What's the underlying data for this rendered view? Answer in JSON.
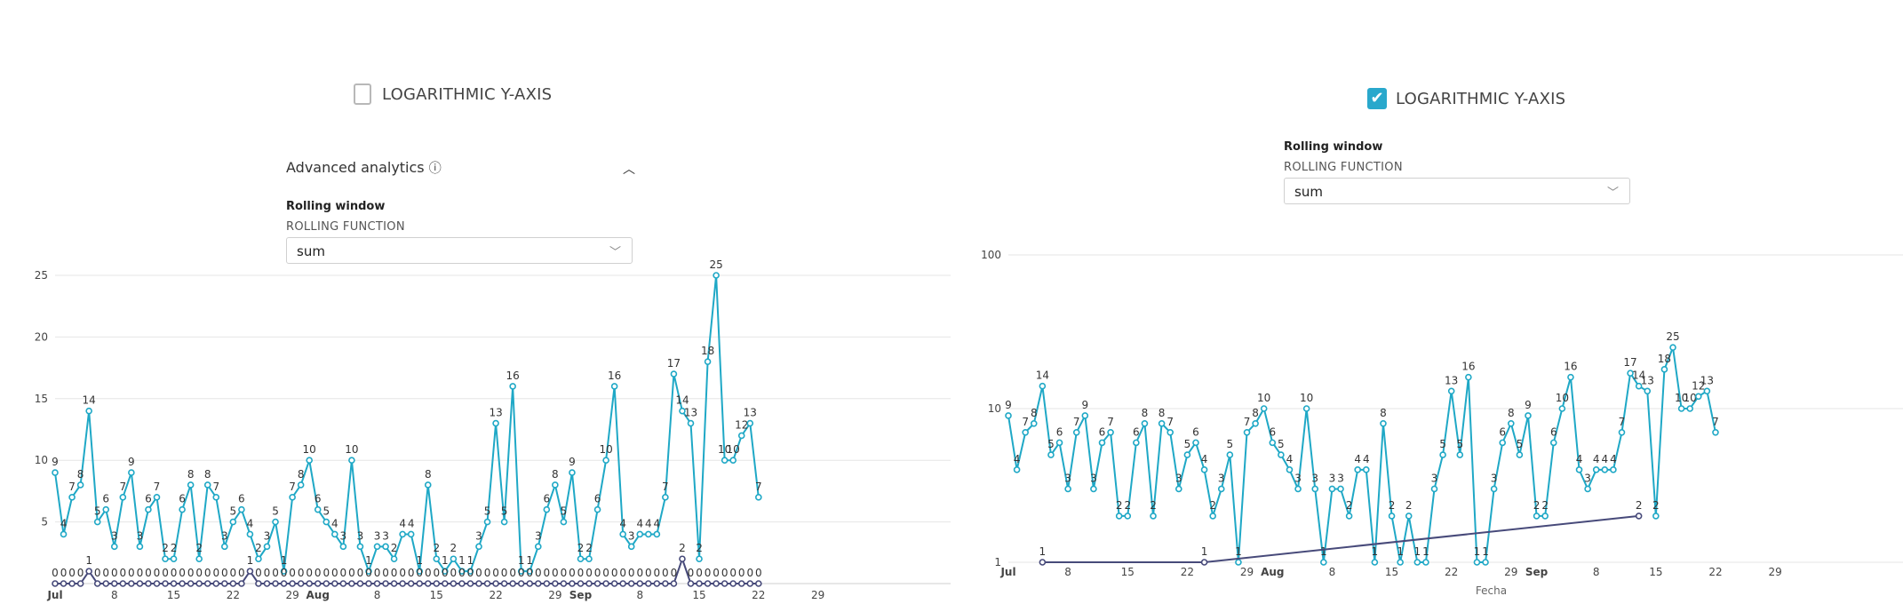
{
  "left_panel": {
    "log_axis_label": "LOGARITHMIC Y-AXIS",
    "log_axis_checked": false,
    "advanced_analytics_label": "Advanced analytics",
    "info_icon": "info-icon",
    "collapse_icon": "chevron-up-icon",
    "rolling_window_label": "Rolling window",
    "rolling_function_label": "ROLLING FUNCTION",
    "rolling_function_value": "sum"
  },
  "right_panel": {
    "log_axis_label": "LOGARITHMIC Y-AXIS",
    "log_axis_checked": true,
    "rolling_window_label": "Rolling window",
    "rolling_function_label": "ROLLING FUNCTION",
    "rolling_function_value": "sum"
  },
  "colors": {
    "series_main": "#1fa8c6",
    "series_secondary": "#474a7a",
    "checkbox_accent": "#29a8cc",
    "grid": "#e6e6e6"
  },
  "chart_data": [
    {
      "type": "line",
      "scale": "linear",
      "ylim": [
        0,
        25
      ],
      "yticks": [
        5,
        10,
        15,
        20,
        25
      ],
      "xlabel": "",
      "x_tick_labels": [
        "Jul",
        "8",
        "15",
        "22",
        "29",
        "Aug",
        "8",
        "15",
        "22",
        "29",
        "Sep",
        "8",
        "15",
        "22",
        "29"
      ],
      "grid": true,
      "series": [
        {
          "values": [
            9,
            4,
            7,
            8,
            14,
            5,
            6,
            3,
            7,
            9,
            3,
            6,
            7,
            2,
            2,
            6,
            8,
            2,
            8,
            7,
            3,
            5,
            6,
            4,
            2,
            3,
            5,
            1,
            7,
            8,
            10,
            6,
            5,
            4,
            3,
            10,
            3,
            1,
            3,
            3,
            2,
            4,
            4,
            1,
            8,
            2,
            1,
            2,
            1,
            1,
            3,
            5,
            13,
            5,
            16,
            1,
            1,
            3,
            6,
            8,
            5,
            9,
            2,
            2,
            6,
            10,
            16,
            4,
            3,
            4,
            4,
            4,
            7,
            17,
            14,
            13,
            2,
            18,
            25,
            10,
            10,
            12,
            13,
            7
          ]
        },
        {
          "values": [
            0,
            0,
            0,
            0,
            1,
            0,
            0,
            0,
            0,
            0,
            0,
            0,
            0,
            0,
            0,
            0,
            0,
            0,
            0,
            0,
            0,
            0,
            0,
            1,
            0,
            0,
            0,
            0,
            0,
            0,
            0,
            0,
            0,
            0,
            0,
            0,
            0,
            0,
            0,
            0,
            0,
            0,
            0,
            0,
            0,
            0,
            0,
            0,
            0,
            0,
            0,
            0,
            0,
            0,
            0,
            0,
            0,
            0,
            0,
            0,
            0,
            0,
            0,
            0,
            0,
            0,
            0,
            0,
            0,
            0,
            0,
            0,
            0,
            0,
            2,
            0,
            0,
            0,
            0,
            0,
            0,
            0,
            0,
            0
          ]
        }
      ]
    },
    {
      "type": "line",
      "scale": "log",
      "ylim": [
        1,
        100
      ],
      "yticks": [
        1,
        10,
        100
      ],
      "xlabel": "Fecha",
      "x_tick_labels": [
        "Jul",
        "8",
        "15",
        "22",
        "29",
        "Aug",
        "8",
        "15",
        "22",
        "29",
        "Sep",
        "8",
        "15",
        "22",
        "29"
      ],
      "grid": true,
      "series": [
        {
          "values": [
            9,
            4,
            7,
            8,
            14,
            5,
            6,
            3,
            7,
            9,
            3,
            6,
            7,
            2,
            2,
            6,
            8,
            2,
            8,
            7,
            3,
            5,
            6,
            4,
            2,
            3,
            5,
            1,
            7,
            8,
            10,
            6,
            5,
            4,
            3,
            10,
            3,
            1,
            3,
            3,
            2,
            4,
            4,
            1,
            8,
            2,
            1,
            2,
            1,
            1,
            3,
            5,
            13,
            5,
            16,
            1,
            1,
            3,
            6,
            8,
            5,
            9,
            2,
            2,
            6,
            10,
            16,
            4,
            3,
            4,
            4,
            4,
            7,
            17,
            14,
            13,
            2,
            18,
            25,
            10,
            10,
            12,
            13,
            7
          ]
        },
        {
          "points": [
            [
              4,
              1
            ],
            [
              23,
              1
            ],
            [
              74,
              2
            ]
          ]
        }
      ]
    }
  ]
}
